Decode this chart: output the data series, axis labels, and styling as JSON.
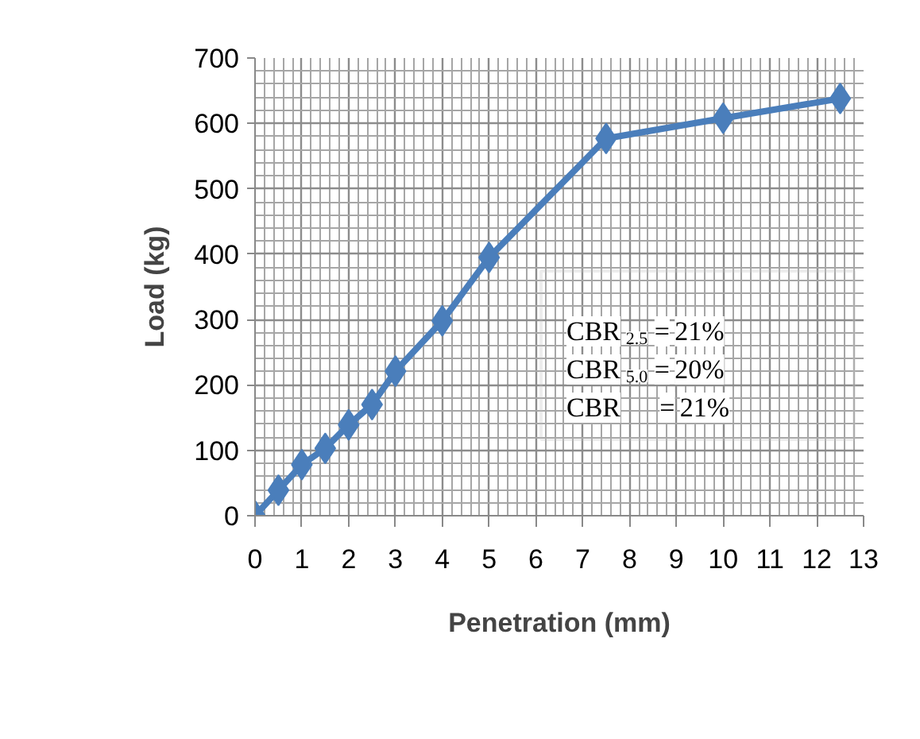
{
  "chart_data": {
    "type": "line",
    "xlabel": "Penetration (mm)",
    "ylabel": "Load (kg)",
    "x": [
      0,
      0.5,
      1,
      1.5,
      2,
      2.5,
      3,
      4,
      5,
      7.5,
      10,
      12.5
    ],
    "series": [
      {
        "color": "#4a7ebb",
        "values": [
          0,
          39,
          78,
          103,
          139,
          170,
          221,
          298,
          395,
          577,
          608,
          638
        ]
      }
    ],
    "xlim": [
      0,
      13
    ],
    "xticks": [
      0,
      1,
      2,
      3,
      4,
      5,
      6,
      7,
      8,
      9,
      10,
      11,
      12,
      13
    ],
    "ylim": [
      0,
      700
    ],
    "yticks": [
      0,
      100,
      200,
      300,
      400,
      500,
      600,
      700
    ],
    "grid": true,
    "marker": "diamond",
    "line_style": "solid",
    "annotations": [
      "CBR $_{2.5}$ = 21%",
      "CBR $_{5.0}$ = 20%",
      "CBR      = 21%"
    ]
  }
}
